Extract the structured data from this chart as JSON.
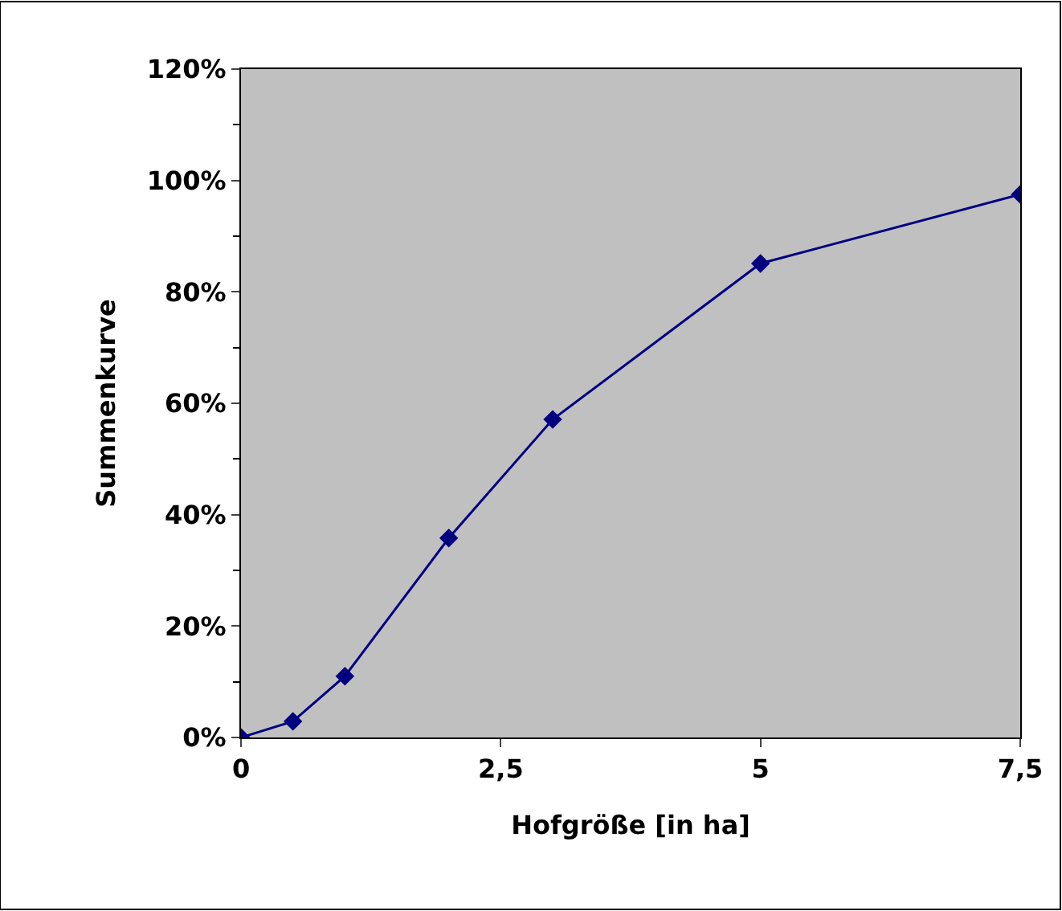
{
  "chart_data": {
    "type": "line",
    "xlabel": "Hofgröße [in ha]",
    "ylabel": "Summenkurve",
    "x": [
      0,
      0.5,
      1,
      2,
      3,
      5,
      7.5
    ],
    "series": [
      {
        "color": "#000080",
        "values": [
          0,
          2.9,
          11,
          35.8,
          57.1,
          85.1,
          97.5
        ]
      }
    ],
    "xlim": [
      0,
      7.5
    ],
    "xticks": [
      0,
      {
        "value": 2.5,
        "label": "2,5"
      },
      5,
      {
        "value": 7.5,
        "label": "7,5"
      }
    ],
    "ylim": [
      0,
      120
    ],
    "yticks": [
      {
        "value": 0,
        "label": "0%"
      },
      {
        "value": 20,
        "label": "20%"
      },
      {
        "value": 40,
        "label": "40%"
      },
      {
        "value": 60,
        "label": "60%"
      },
      {
        "value": 80,
        "label": "80%"
      },
      {
        "value": 100,
        "label": "100%"
      },
      {
        "value": 120,
        "label": "120%"
      }
    ],
    "grid": false,
    "marker": "diamond",
    "line_style": "solid"
  }
}
